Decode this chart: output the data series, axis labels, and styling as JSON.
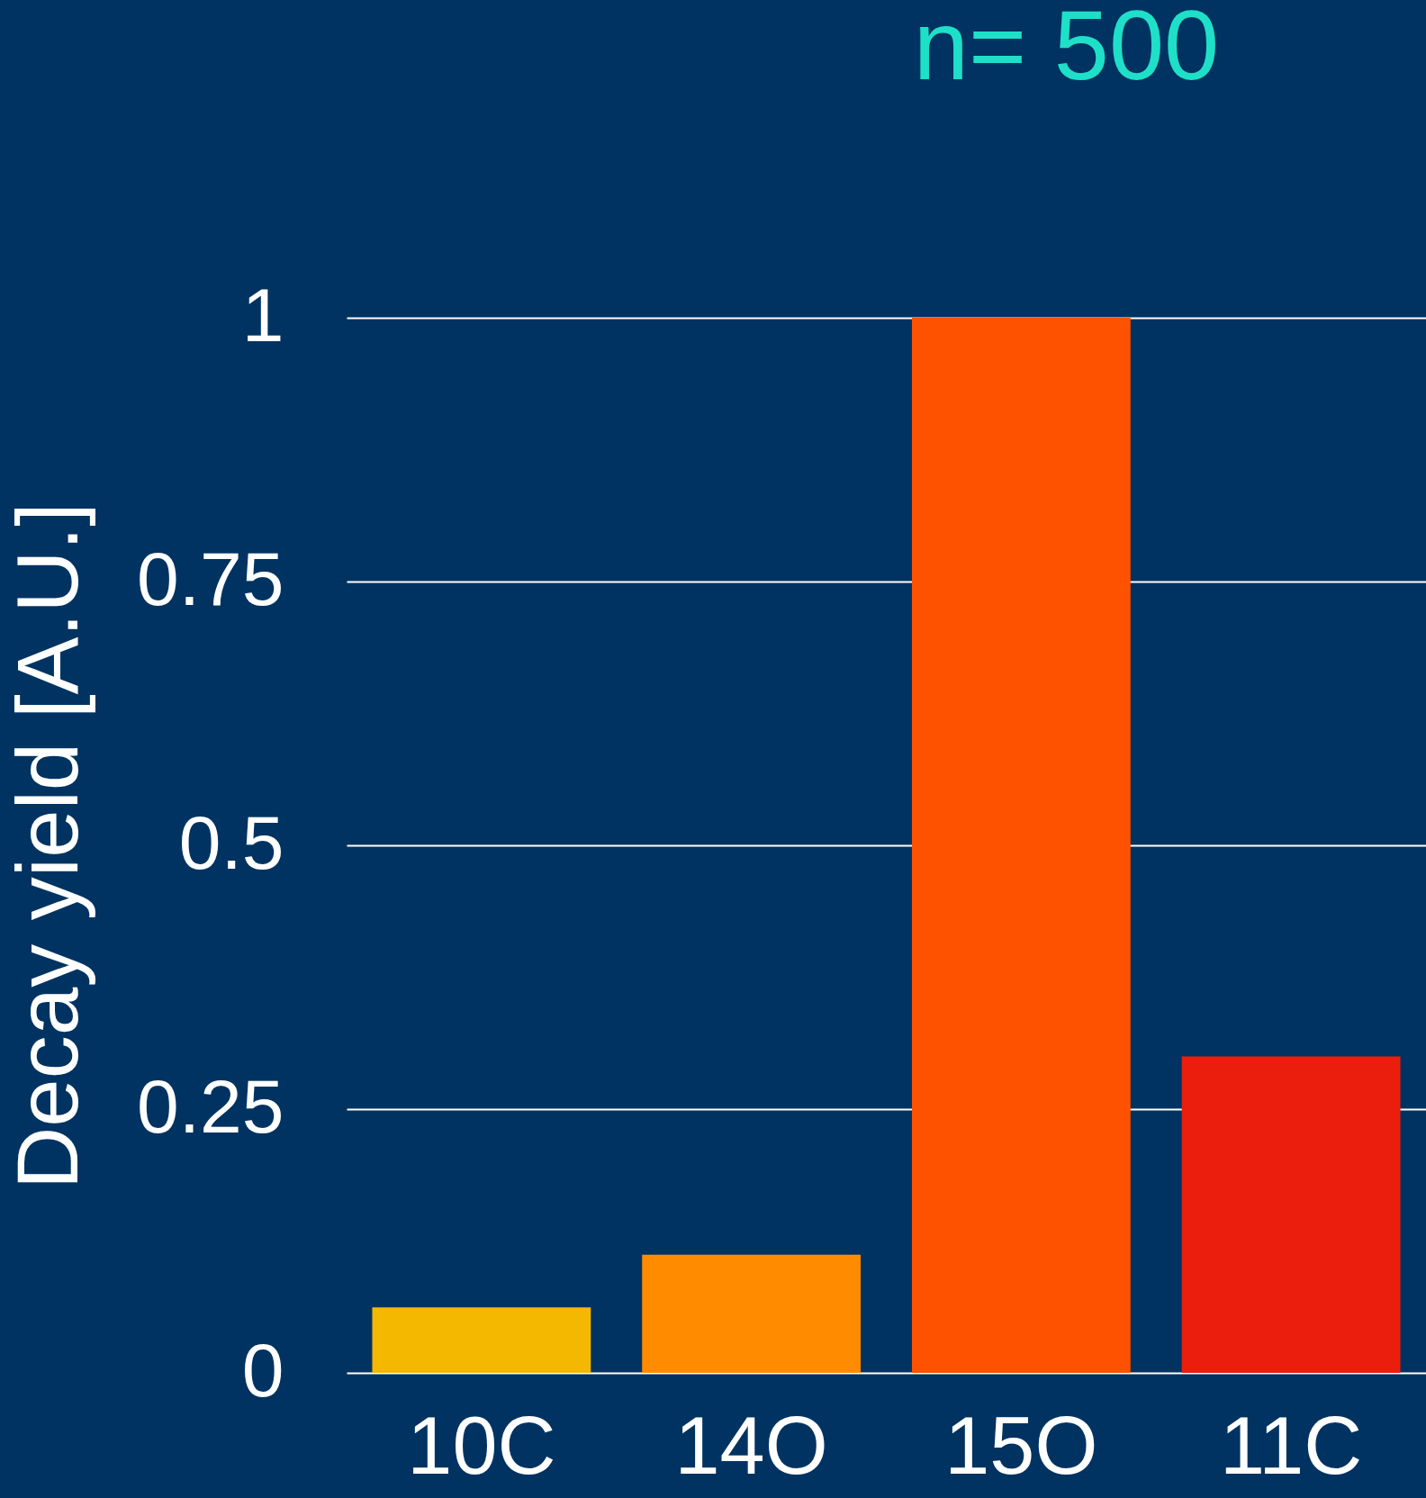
{
  "chart_data": {
    "type": "bar",
    "title": "n= 500",
    "ylabel": "Decay yield [A.U.]",
    "categories": [
      "10C",
      "14O",
      "15O",
      "11C"
    ],
    "values": [
      0.062,
      0.112,
      1,
      0.3
    ],
    "colors": [
      "#f5b800",
      "#ff8c00",
      "#ff5200",
      "#eb1e0e"
    ],
    "ylim": [
      0,
      1
    ],
    "yticks": [
      0,
      0.25,
      0.5,
      0.75,
      1
    ],
    "grid": "y"
  }
}
